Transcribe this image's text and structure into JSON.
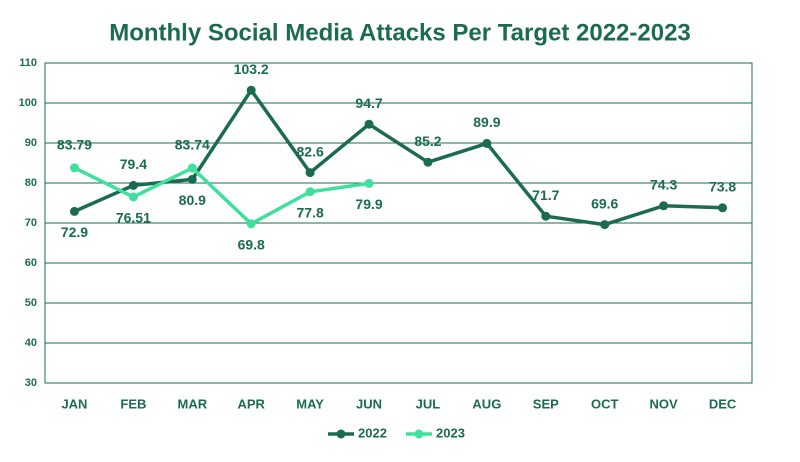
{
  "chart_data": {
    "type": "line",
    "title": "Monthly Social Media Attacks Per Target 2022-2023",
    "categories": [
      "JAN",
      "FEB",
      "MAR",
      "APR",
      "MAY",
      "JUN",
      "JUL",
      "AUG",
      "SEP",
      "OCT",
      "NOV",
      "DEC"
    ],
    "series": [
      {
        "name": "2022",
        "color": "#1b6b50",
        "values": [
          72.9,
          79.4,
          80.9,
          103.2,
          82.6,
          94.7,
          85.2,
          89.9,
          71.7,
          69.6,
          74.3,
          73.8
        ]
      },
      {
        "name": "2023",
        "color": "#3fe09c",
        "values": [
          83.79,
          76.51,
          83.74,
          69.8,
          77.8,
          79.9,
          null,
          null,
          null,
          null,
          null,
          null
        ]
      }
    ],
    "ylim": [
      30,
      110
    ],
    "yticks": [
      30,
      40,
      50,
      60,
      70,
      80,
      90,
      100,
      110
    ],
    "grid": true,
    "legend": "bottom"
  }
}
